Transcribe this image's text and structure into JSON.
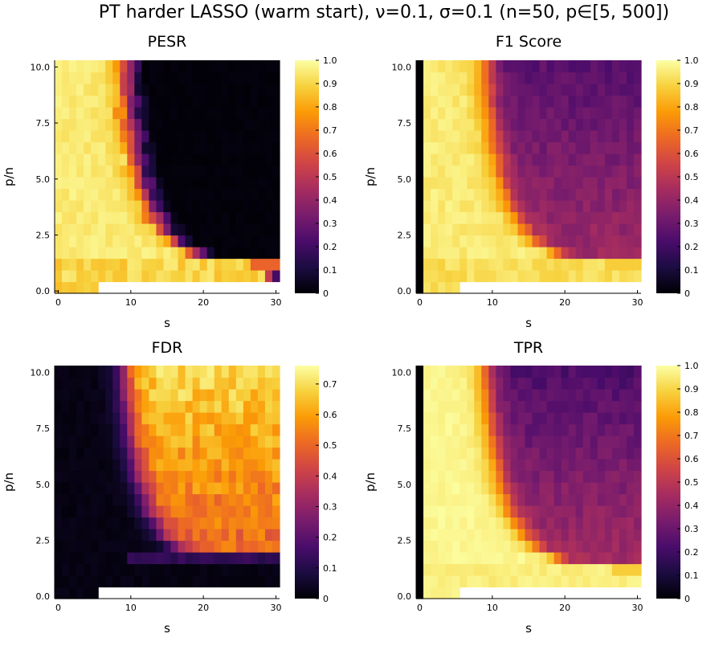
{
  "title": "PT harder LASSO (warm start), ν=0.1, σ=0.1 (n=50, p∈[5, 500])",
  "colormap": [
    "#000004",
    "#1b0c41",
    "#4a0c6b",
    "#781c6d",
    "#a52c60",
    "#cf4446",
    "#ed6925",
    "#fb9b06",
    "#f7d13d",
    "#fcffa4"
  ],
  "chart_data": [
    {
      "type": "heatmap",
      "title": "PESR",
      "xlabel": "s",
      "ylabel": "p/n",
      "xlim": [
        -0.5,
        30.5
      ],
      "ylim": [
        -0.1,
        10.3
      ],
      "x_ticks": [
        "0",
        "10",
        "20",
        "30"
      ],
      "y_ticks": [
        "0.0",
        "2.5",
        "5.0",
        "7.5",
        "10.0"
      ],
      "colorbar_range": [
        0,
        1.0
      ],
      "colorbar_ticks": [
        "0",
        "0.1",
        "0.2",
        "0.3",
        "0.4",
        "0.5",
        "0.6",
        "0.7",
        "0.8",
        "0.9",
        "1.0"
      ],
      "grid_rows": 20,
      "grid_cols": 31,
      "description_of_pattern": "~1 for small s (left region), sharp transition around s≈8-12 descending with p/n, ~0 elsewhere; bottom row (p/n≈0.1) ~1 for s≤29, missing for s≥6 at lowest row",
      "transition_s_by_row": [
        30,
        29,
        28,
        19,
        16,
        14.5,
        13.5,
        12.5,
        12,
        11.5,
        11,
        10.8,
        10.5,
        10.2,
        10,
        9.8,
        9.6,
        9.5,
        9.4,
        9.3
      ],
      "high_value": 0.95,
      "low_value": 0.0
    },
    {
      "type": "heatmap",
      "title": "F1 Score",
      "xlabel": "s",
      "ylabel": "p/n",
      "xlim": [
        -0.5,
        30.5
      ],
      "ylim": [
        -0.1,
        10.3
      ],
      "x_ticks": [
        "0",
        "10",
        "20",
        "30"
      ],
      "y_ticks": [
        "0.0",
        "2.5",
        "5.0",
        "7.5",
        "10.0"
      ],
      "colorbar_range": [
        0,
        1.0
      ],
      "colorbar_ticks": [
        "0",
        "0.1",
        "0.2",
        "0.3",
        "0.4",
        "0.5",
        "0.6",
        "0.7",
        "0.8",
        "0.9",
        "1.0"
      ],
      "grid_rows": 20,
      "grid_cols": 31,
      "description_of_pattern": "column s=0 is 0; high (~0.95) for small s, decreasing to ~0.3 at large s and large p/n",
      "transition_s_by_row": [
        30,
        29,
        28,
        19,
        16,
        14.5,
        13.5,
        12.5,
        12,
        11.5,
        11,
        10.8,
        10.5,
        10.2,
        10,
        9.8,
        9.6,
        9.5,
        9.4,
        9.3
      ],
      "high_value": 0.95,
      "low_value": 0.25
    },
    {
      "type": "heatmap",
      "title": "FDR",
      "xlabel": "s",
      "ylabel": "p/n",
      "xlim": [
        -0.5,
        30.5
      ],
      "ylim": [
        -0.1,
        10.3
      ],
      "x_ticks": [
        "0",
        "10",
        "20",
        "30"
      ],
      "y_ticks": [
        "0.0",
        "2.5",
        "5.0",
        "7.5",
        "10.0"
      ],
      "colorbar_range": [
        0,
        0.76
      ],
      "colorbar_ticks": [
        "0",
        "0.1",
        "0.2",
        "0.3",
        "0.4",
        "0.5",
        "0.6",
        "0.7"
      ],
      "grid_rows": 20,
      "grid_cols": 31,
      "description_of_pattern": "~0 for small s; rises to ~0.5-0.7 for large s and large p/n",
      "transition_s_by_row": [
        30,
        29,
        28,
        19,
        16,
        14.5,
        13.5,
        12.5,
        12,
        11.5,
        11,
        10.8,
        10.5,
        10.2,
        10,
        9.8,
        9.6,
        9.5,
        9.4,
        9.3
      ],
      "high_value": 0.02,
      "low_value": 0.62
    },
    {
      "type": "heatmap",
      "title": "TPR",
      "xlabel": "s",
      "ylabel": "p/n",
      "xlim": [
        -0.5,
        30.5
      ],
      "ylim": [
        -0.1,
        10.3
      ],
      "x_ticks": [
        "0",
        "10",
        "20",
        "30"
      ],
      "y_ticks": [
        "0.0",
        "2.5",
        "5.0",
        "7.5",
        "10.0"
      ],
      "colorbar_range": [
        0,
        1.0
      ],
      "colorbar_ticks": [
        "0",
        "0.1",
        "0.2",
        "0.3",
        "0.4",
        "0.5",
        "0.6",
        "0.7",
        "0.8",
        "0.9",
        "1.0"
      ],
      "grid_rows": 20,
      "grid_cols": 31,
      "description_of_pattern": "column s=0 is 0; ~1 for small s; drops to ~0.2-0.3 for large s and large p/n",
      "transition_s_by_row": [
        30,
        29,
        28,
        19,
        16,
        14.5,
        13.5,
        12.5,
        12,
        11.5,
        11,
        10.8,
        10.5,
        10.2,
        10,
        9.8,
        9.6,
        9.5,
        9.4,
        9.3
      ],
      "high_value": 0.98,
      "low_value": 0.22
    }
  ]
}
